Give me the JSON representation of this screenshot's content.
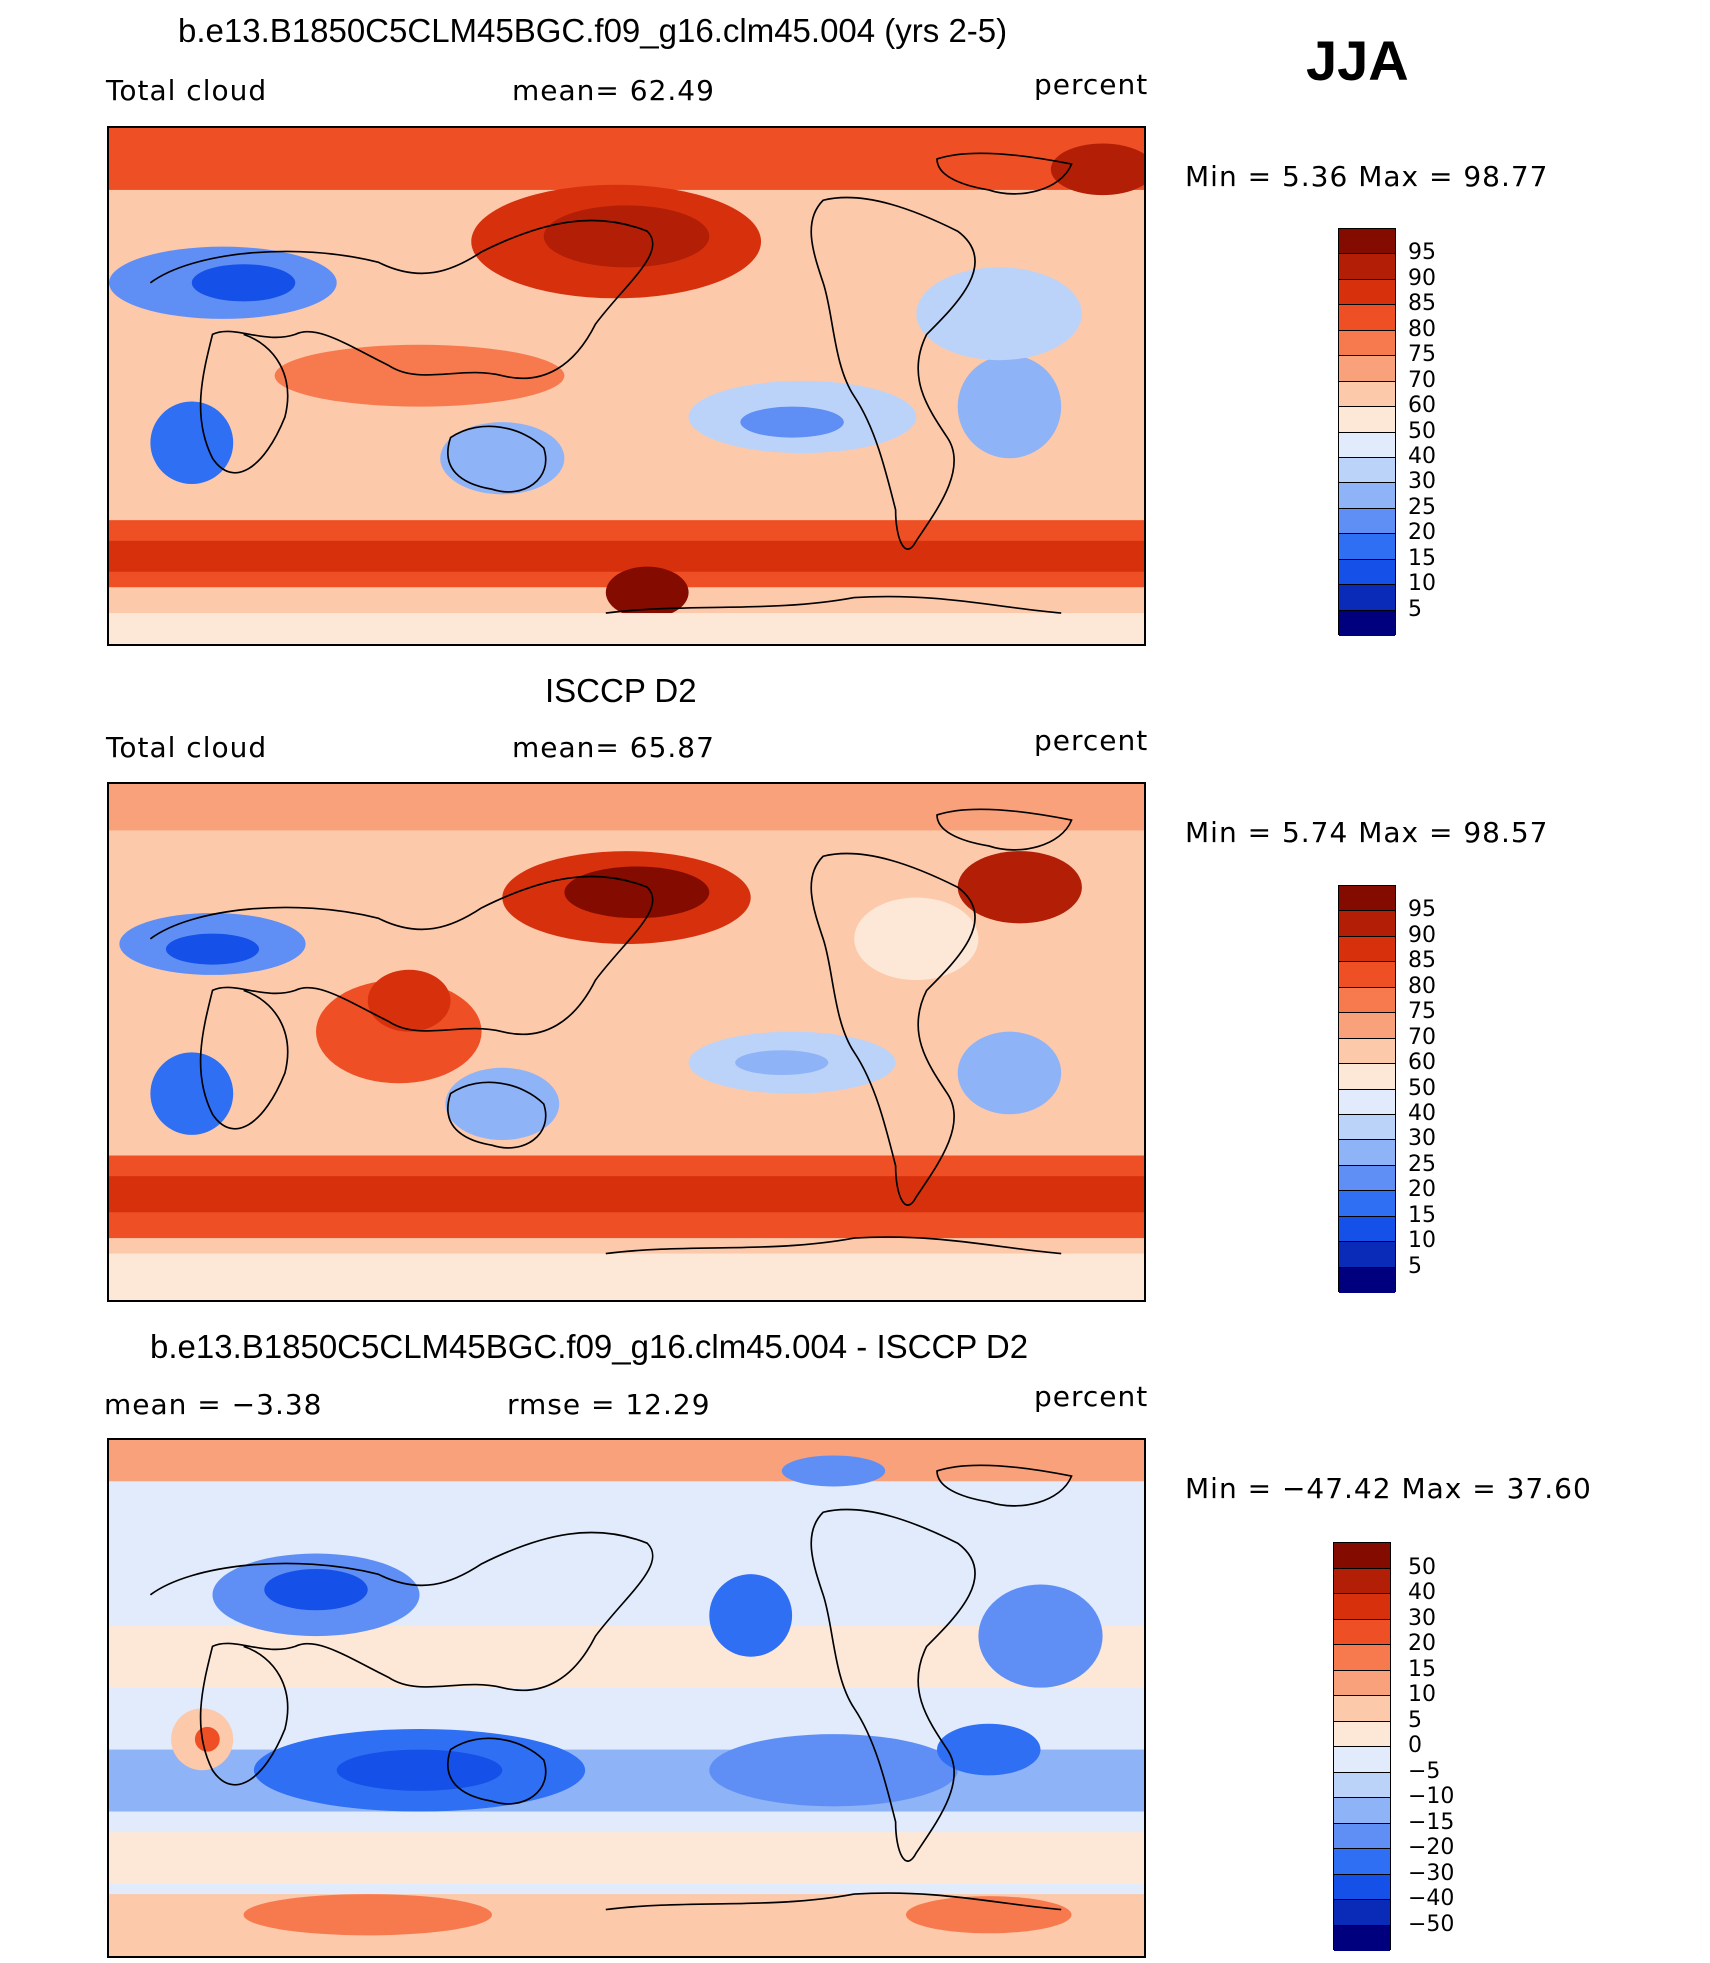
{
  "season": "JJA",
  "colors": {
    "seq": [
      "#00007f",
      "#0a2ab8",
      "#1550e8",
      "#2e6ff4",
      "#5f8ff5",
      "#8fb3f7",
      "#bcd3f9",
      "#e1ebfc",
      "#fde8d8",
      "#fcc9ab",
      "#f9a17b",
      "#f77a4e",
      "#ef4f24",
      "#d7300c",
      "#b31e06",
      "#830b00"
    ],
    "diff": [
      "#00007f",
      "#0a2ab8",
      "#1550e8",
      "#2e6ff4",
      "#5f8ff5",
      "#8fb3f7",
      "#bcd3f9",
      "#e1ebfc",
      "#fde8d8",
      "#fcc9ab",
      "#f9a17b",
      "#f77a4e",
      "#ef4f24",
      "#d7300c",
      "#b31e06",
      "#830b00"
    ]
  },
  "panels": [
    {
      "title": "b.e13.B1850C5CLM45BGC.f09_g16.clm45.004 (yrs 2-5)",
      "left": "Total cloud",
      "center": "mean=   62.49",
      "units": "percent",
      "minmax": "Min =     5.36  Max  =    98.77",
      "levels": [
        "95",
        "90",
        "85",
        "80",
        "75",
        "70",
        "60",
        "50",
        "40",
        "30",
        "25",
        "20",
        "15",
        "10",
        "5"
      ]
    },
    {
      "title": "ISCCP D2",
      "left": "Total cloud",
      "center": "mean=   65.87",
      "units": "percent",
      "minmax": "Min =     5.74  Max  =    98.57",
      "levels": [
        "95",
        "90",
        "85",
        "80",
        "75",
        "70",
        "60",
        "50",
        "40",
        "30",
        "25",
        "20",
        "15",
        "10",
        "5"
      ]
    },
    {
      "title": "b.e13.B1850C5CLM45BGC.f09_g16.clm45.004 - ISCCP D2",
      "left": "mean  =    −3.38",
      "center": "rmse  =    12.29",
      "units": "percent",
      "minmax": "Min  = −47.42  Max  =    37.60",
      "levels": [
        "50",
        "40",
        "30",
        "20",
        "15",
        "10",
        "5",
        "0",
        "−5",
        "−10",
        "−15",
        "−20",
        "−30",
        "−40",
        "−50"
      ]
    }
  ]
}
